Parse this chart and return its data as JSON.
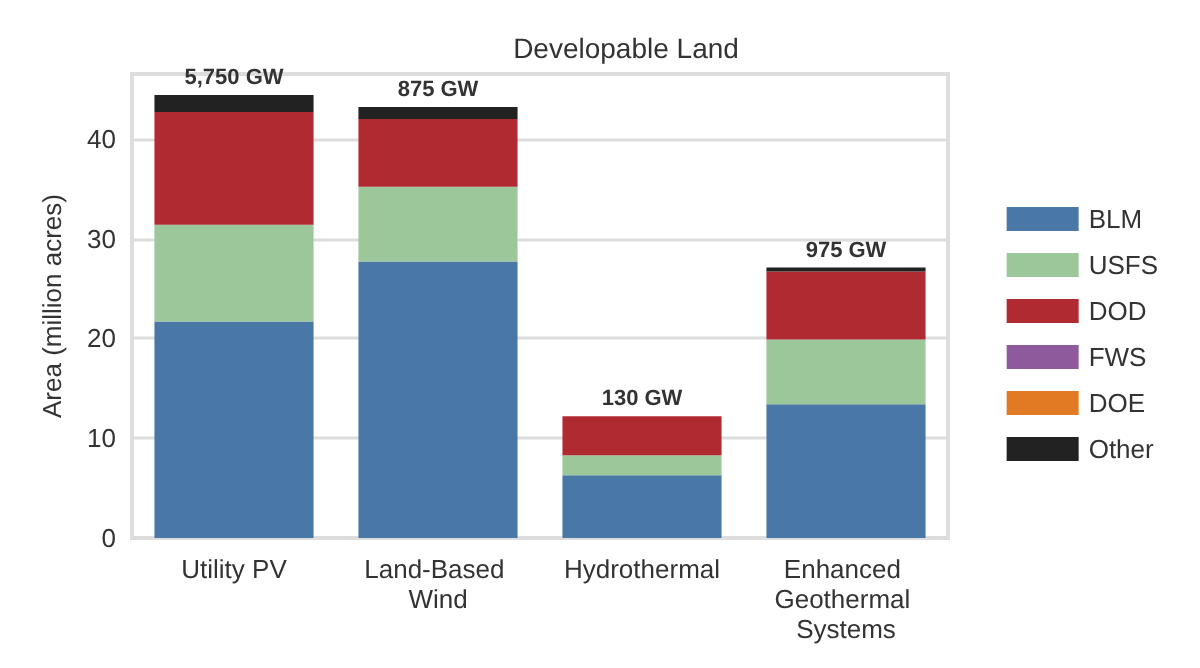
{
  "chart_data": {
    "type": "bar",
    "title": "Developable Land",
    "ylabel": "Area (million acres)",
    "categories": [
      "Utility PV",
      "Land-Based Wind",
      "Hydrothermal",
      "Enhanced Geothermal Systems"
    ],
    "stacked": true,
    "series": [
      {
        "name": "BLM",
        "color": "#4a78a6",
        "values": [
          21.7,
          27.7,
          6.3,
          13.4
        ]
      },
      {
        "name": "USFS",
        "color": "#9cc79a",
        "values": [
          9.7,
          7.5,
          2.0,
          6.5
        ]
      },
      {
        "name": "DOD",
        "color": "#b02a32",
        "values": [
          11.3,
          6.8,
          3.9,
          6.8
        ]
      },
      {
        "name": "FWS",
        "color": "#8e5a9c",
        "values": [
          0,
          0,
          0,
          0
        ]
      },
      {
        "name": "DOE",
        "color": "#e07b24",
        "values": [
          0,
          0,
          0,
          0
        ]
      },
      {
        "name": "Other",
        "color": "#222222",
        "values": [
          1.7,
          1.2,
          0,
          0.4
        ]
      }
    ],
    "annotations": [
      {
        "text": "5,750 GW",
        "x": "Utility PV",
        "y": 44.4
      },
      {
        "text": "875 GW",
        "x": "Land-Based Wind",
        "y": 43.2
      },
      {
        "text": "130 GW",
        "x": "Hydrothermal",
        "y": 12.2
      },
      {
        "text": "975 GW",
        "x": "Enhanced Geothermal Systems",
        "y": 27.1
      }
    ],
    "ylim": [
      0,
      46.5
    ],
    "yticks": [
      0,
      10,
      20,
      30,
      40
    ],
    "grid": "y",
    "legend": "right"
  }
}
